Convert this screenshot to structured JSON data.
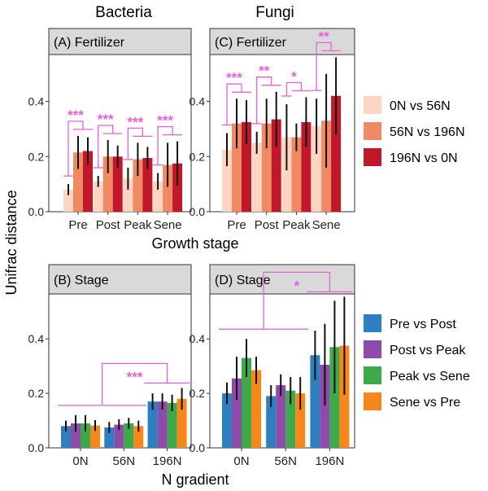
{
  "figure": {
    "column_titles": [
      "Bacteria",
      "Fungi"
    ],
    "y_axis_label": "Unifrac distance",
    "top_x_label": "Growth stage",
    "bottom_x_label": "N gradient"
  },
  "legends": [
    {
      "entries": [
        {
          "label": "0N vs 56N",
          "color": "#FDD5C2"
        },
        {
          "label": "56N vs 196N",
          "color": "#F08A65"
        },
        {
          "label": "196N vs 0N",
          "color": "#C0182A"
        }
      ]
    },
    {
      "entries": [
        {
          "label": "Pre vs Post",
          "color": "#2D7FBF"
        },
        {
          "label": "Post vs Peak",
          "color": "#8E4BA9"
        },
        {
          "label": "Peak vs Sene",
          "color": "#3DAA4A"
        },
        {
          "label": "Sene vs Pre",
          "color": "#F7861B"
        }
      ]
    }
  ],
  "chart_data": [
    {
      "panel": "(A) Fertilizer",
      "type": "bar",
      "categories": [
        "Pre",
        "Post",
        "Peak",
        "Sene"
      ],
      "series": [
        {
          "name": "0N vs 56N",
          "color": "#FDD5C2",
          "values": [
            0.08,
            0.11,
            0.12,
            0.11
          ],
          "errors": [
            0.02,
            0.02,
            0.04,
            0.03
          ]
        },
        {
          "name": "56N vs 196N",
          "color": "#F08A65",
          "values": [
            0.215,
            0.2,
            0.19,
            0.17
          ],
          "errors": [
            0.06,
            0.06,
            0.06,
            0.08
          ]
        },
        {
          "name": "196N vs 0N",
          "color": "#C0182A",
          "values": [
            0.22,
            0.2,
            0.195,
            0.175
          ],
          "errors": [
            0.05,
            0.04,
            0.04,
            0.08
          ]
        }
      ],
      "significance": [
        "***",
        "***",
        "***",
        "***"
      ],
      "yticks": [
        0.0,
        0.2,
        0.4
      ],
      "ylim": [
        0,
        0.57
      ]
    },
    {
      "panel": "(C) Fertilizer",
      "type": "bar",
      "categories": [
        "Pre",
        "Post",
        "Peak",
        "Sene"
      ],
      "series": [
        {
          "name": "0N vs 56N",
          "color": "#FDD5C2",
          "values": [
            0.225,
            0.25,
            0.27,
            0.31
          ],
          "errors": [
            0.06,
            0.04,
            0.12,
            0.1
          ]
        },
        {
          "name": "56N vs 196N",
          "color": "#F08A65",
          "values": [
            0.32,
            0.32,
            0.27,
            0.33
          ],
          "errors": [
            0.09,
            0.09,
            0.05,
            0.17
          ]
        },
        {
          "name": "196N vs 0N",
          "color": "#C0182A",
          "values": [
            0.325,
            0.335,
            0.325,
            0.42
          ],
          "errors": [
            0.08,
            0.1,
            0.09,
            0.14
          ]
        }
      ],
      "significance": [
        "***",
        "**",
        "*",
        "**"
      ],
      "yticks": [
        0.0,
        0.2,
        0.4
      ],
      "ylim": [
        0,
        0.57
      ]
    },
    {
      "panel": "(B) Stage",
      "type": "bar",
      "categories": [
        "0N",
        "56N",
        "196N"
      ],
      "series": [
        {
          "name": "Pre vs Post",
          "color": "#2D7FBF",
          "values": [
            0.08,
            0.075,
            0.17
          ],
          "errors": [
            0.02,
            0.02,
            0.03
          ]
        },
        {
          "name": "Post vs Peak",
          "color": "#8E4BA9",
          "values": [
            0.09,
            0.085,
            0.17
          ],
          "errors": [
            0.03,
            0.02,
            0.03
          ]
        },
        {
          "name": "Peak vs Sene",
          "color": "#3DAA4A",
          "values": [
            0.09,
            0.09,
            0.165
          ],
          "errors": [
            0.03,
            0.02,
            0.03
          ]
        },
        {
          "name": "Sene vs Pre",
          "color": "#F7861B",
          "values": [
            0.082,
            0.08,
            0.18
          ],
          "errors": [
            0.02,
            0.02,
            0.04
          ]
        }
      ],
      "significance": [
        "***"
      ],
      "yticks": [
        0.0,
        0.2,
        0.4
      ],
      "ylim": [
        0,
        0.565
      ]
    },
    {
      "panel": "(D) Stage",
      "type": "bar",
      "categories": [
        "0N",
        "56N",
        "196N"
      ],
      "series": [
        {
          "name": "Pre vs Post",
          "color": "#2D7FBF",
          "values": [
            0.2,
            0.19,
            0.34
          ],
          "errors": [
            0.04,
            0.04,
            0.09
          ]
        },
        {
          "name": "Post vs Peak",
          "color": "#8E4BA9",
          "values": [
            0.255,
            0.23,
            0.305
          ],
          "errors": [
            0.08,
            0.04,
            0.15
          ]
        },
        {
          "name": "Peak vs Sene",
          "color": "#3DAA4A",
          "values": [
            0.33,
            0.21,
            0.37
          ],
          "errors": [
            0.07,
            0.05,
            0.17
          ]
        },
        {
          "name": "Sene vs Pre",
          "color": "#F7861B",
          "values": [
            0.285,
            0.2,
            0.375
          ],
          "errors": [
            0.05,
            0.06,
            0.18
          ]
        }
      ],
      "significance": [
        "*"
      ],
      "yticks": [
        0.0,
        0.2,
        0.4
      ],
      "ylim": [
        0,
        0.565
      ]
    }
  ]
}
